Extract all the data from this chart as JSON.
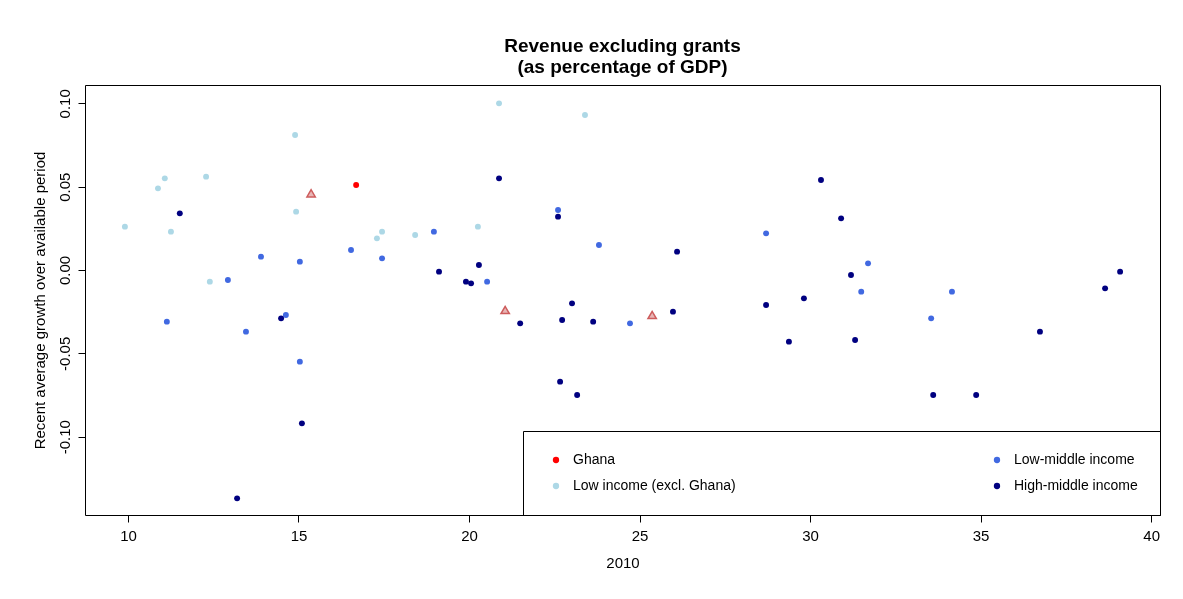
{
  "chart_data": {
    "type": "scatter",
    "title": "Revenue excluding grants\n(as percentage of GDP)",
    "xlabel": "2010",
    "ylabel": "Recent average growth over available period",
    "xlim": [
      8.74,
      40.26
    ],
    "ylim": [
      -0.147,
      0.111
    ],
    "xticks": [
      10,
      15,
      20,
      25,
      30,
      35,
      40
    ],
    "yticks": [
      {
        "value": -0.1,
        "label": "-0.10"
      },
      {
        "value": -0.05,
        "label": "-0.05"
      },
      {
        "value": 0,
        "label": "0.00"
      },
      {
        "value": 0.05,
        "label": "0.05"
      },
      {
        "value": 0.1,
        "label": "0.10"
      }
    ],
    "grid": false,
    "legend": "bottom right",
    "marker": "circle",
    "series": [
      {
        "name": "Ghana",
        "color": "#ff0000",
        "x": [
          16.69
        ],
        "values": [
          0.051
        ]
      },
      {
        "name": "Low income (excl. Ghana)",
        "color": "#add8e6",
        "x": [
          9.91,
          10.88,
          11.08,
          11.26,
          12.29,
          12.4,
          14.9,
          14.93,
          17.3,
          17.45,
          18.42,
          20.26,
          20.88,
          23.4
        ],
        "values": [
          0.026,
          0.049,
          0.055,
          0.023,
          0.056,
          -0.007,
          0.081,
          0.035,
          0.019,
          0.023,
          0.021,
          0.026,
          0.1,
          0.093
        ]
      },
      {
        "name": "Low-middle income",
        "color": "#4169e1",
        "x": [
          11.14,
          12.93,
          13.46,
          13.9,
          14.63,
          15.04,
          15.04,
          16.54,
          17.45,
          18.97,
          20.53,
          22.61,
          23.81,
          24.72,
          28.71,
          31.7,
          31.5,
          33.55,
          34.16
        ],
        "values": [
          -0.031,
          -0.006,
          -0.037,
          0.008,
          -0.027,
          0.005,
          -0.055,
          0.012,
          0.007,
          0.023,
          -0.007,
          0.036,
          0.015,
          -0.032,
          0.022,
          0.004,
          -0.013,
          -0.029,
          -0.013
        ]
      },
      {
        "name": "High-middle income",
        "color": "#000080",
        "x": [
          11.52,
          14.49,
          15.1,
          13.2,
          19.12,
          19.91,
          20.06,
          20.29,
          20.88,
          21.5,
          22.61,
          22.67,
          22.73,
          23.02,
          23.17,
          23.64,
          25.98,
          26.1,
          28.71,
          29.38,
          29.82,
          30.32,
          30.91,
          31.2,
          31.32,
          33.61,
          34.87,
          36.74,
          38.65,
          39.09
        ],
        "values": [
          0.034,
          -0.029,
          -0.092,
          -0.137,
          -0.001,
          -0.007,
          -0.008,
          0.003,
          0.055,
          -0.032,
          0.032,
          -0.067,
          -0.03,
          -0.02,
          -0.075,
          -0.031,
          -0.025,
          0.011,
          -0.021,
          -0.043,
          -0.017,
          0.054,
          0.031,
          -0.003,
          -0.042,
          -0.075,
          -0.075,
          -0.037,
          -0.011,
          -0.001
        ]
      },
      {
        "color": "#cd5c5c",
        "marker": "triangle",
        "x": [
          15.37,
          21.06,
          25.37
        ],
        "values": [
          0.046,
          -0.024,
          -0.027
        ]
      }
    ]
  }
}
